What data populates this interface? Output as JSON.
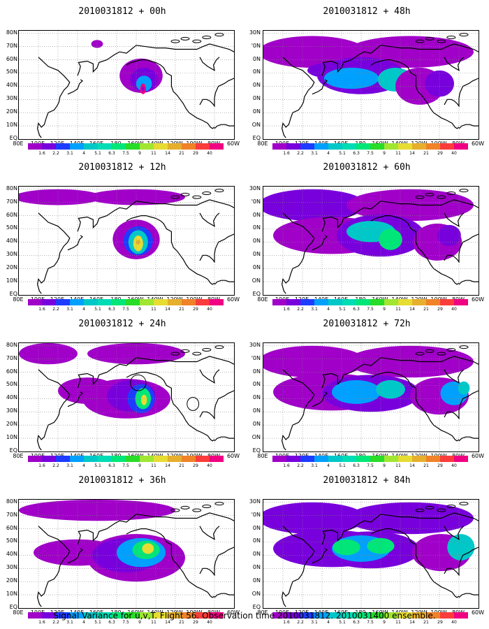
{
  "chart_data": {
    "type": "heatmap",
    "caption": "Signal Variance for u,v,T. Flight 56. Observation time 2010031812. 2010031400 ensemble.",
    "colorbar": {
      "levels": [
        "1.6",
        "2.2",
        "3.1",
        "4",
        "5.1",
        "6.3",
        "7.5",
        "9",
        "11",
        "14",
        "21",
        "29",
        "40"
      ],
      "colors": [
        "#a000c8",
        "#7800dc",
        "#1e3cff",
        "#00a0ff",
        "#00c8c8",
        "#00dcb4",
        "#00e678",
        "#28dc28",
        "#a0e632",
        "#e6dc32",
        "#e6af2d",
        "#f08228",
        "#fa3c3c",
        "#f00082"
      ]
    },
    "axes": {
      "xticks": [
        "80E",
        "100E",
        "120E",
        "140E",
        "160E",
        "180",
        "160W",
        "140W",
        "120W",
        "100W",
        "80W",
        "60W"
      ],
      "yticks": [
        "EQ",
        "10N",
        "20N",
        "30N",
        "40N",
        "50N",
        "60N",
        "70N",
        "80N"
      ],
      "yticks_cut": [
        "EQ",
        "ON",
        "0N",
        "0N",
        "0N",
        "0N",
        "0N",
        "'0N",
        "30N"
      ]
    },
    "panels": [
      {
        "title": "2010031812 + 00h",
        "lead_hours": 0
      },
      {
        "title": "2010031812 + 48h",
        "lead_hours": 48
      },
      {
        "title": "2010031812 + 12h",
        "lead_hours": 12
      },
      {
        "title": "2010031812 + 60h",
        "lead_hours": 60
      },
      {
        "title": "2010031812 + 24h",
        "lead_hours": 24
      },
      {
        "title": "2010031812 + 72h",
        "lead_hours": 72
      },
      {
        "title": "2010031812 + 36h",
        "lead_hours": 36
      },
      {
        "title": "2010031812 + 84h",
        "lead_hours": 84
      }
    ]
  }
}
